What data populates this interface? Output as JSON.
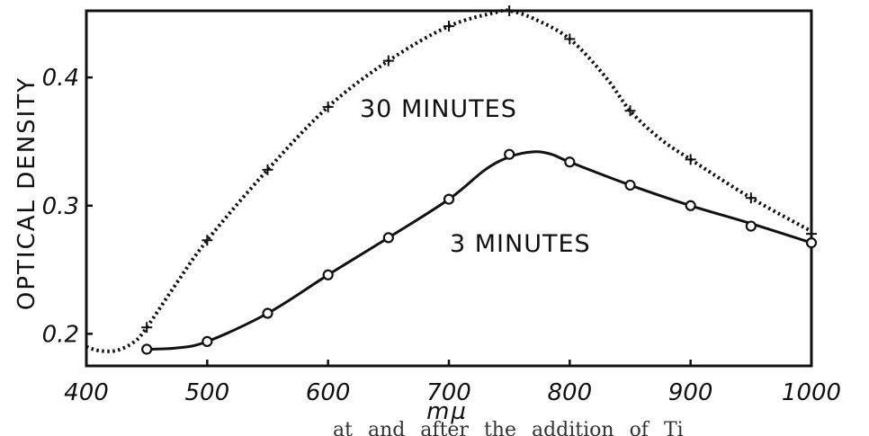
{
  "chart_data": {
    "type": "line",
    "xlabel": "mµ",
    "ylabel": "OPTICAL DENSITY",
    "xlim": [
      400,
      1000
    ],
    "ylim": [
      0.175,
      0.452
    ],
    "x_ticks": [
      "400",
      "500",
      "600",
      "700",
      "800",
      "900",
      "1000"
    ],
    "y_ticks": [
      "0.2",
      "0.3",
      "0.4"
    ],
    "series": [
      {
        "name": "30 MINUTES",
        "line_style": "dotted",
        "marker": "cross",
        "points": [
          [
            450,
            0.205
          ],
          [
            500,
            0.273
          ],
          [
            550,
            0.328
          ],
          [
            600,
            0.377
          ],
          [
            650,
            0.413
          ],
          [
            700,
            0.44
          ],
          [
            750,
            0.452
          ],
          [
            800,
            0.43
          ],
          [
            850,
            0.374
          ],
          [
            900,
            0.336
          ],
          [
            950,
            0.306
          ],
          [
            1000,
            0.278
          ]
        ],
        "curve": [
          [
            400,
            0.19
          ],
          [
            410,
            0.187
          ],
          [
            425,
            0.187
          ],
          [
            440,
            0.194
          ],
          [
            450,
            0.205
          ],
          [
            475,
            0.24
          ],
          [
            500,
            0.273
          ],
          [
            550,
            0.328
          ],
          [
            600,
            0.377
          ],
          [
            650,
            0.413
          ],
          [
            700,
            0.44
          ],
          [
            740,
            0.451
          ],
          [
            750,
            0.452
          ],
          [
            770,
            0.446
          ],
          [
            800,
            0.43
          ],
          [
            830,
            0.4
          ],
          [
            850,
            0.374
          ],
          [
            875,
            0.352
          ],
          [
            900,
            0.336
          ],
          [
            950,
            0.306
          ],
          [
            1000,
            0.28
          ]
        ]
      },
      {
        "name": "3 MINUTES",
        "line_style": "solid",
        "marker": "circle",
        "points": [
          [
            450,
            0.188
          ],
          [
            500,
            0.194
          ],
          [
            550,
            0.216
          ],
          [
            600,
            0.246
          ],
          [
            650,
            0.275
          ],
          [
            700,
            0.305
          ],
          [
            750,
            0.34
          ],
          [
            800,
            0.334
          ],
          [
            850,
            0.316
          ],
          [
            900,
            0.3
          ],
          [
            950,
            0.284
          ],
          [
            1000,
            0.271
          ]
        ],
        "curve": [
          [
            450,
            0.188
          ],
          [
            475,
            0.189
          ],
          [
            500,
            0.194
          ],
          [
            550,
            0.216
          ],
          [
            600,
            0.246
          ],
          [
            650,
            0.275
          ],
          [
            700,
            0.305
          ],
          [
            730,
            0.328
          ],
          [
            750,
            0.338
          ],
          [
            770,
            0.342
          ],
          [
            785,
            0.34
          ],
          [
            800,
            0.334
          ],
          [
            850,
            0.316
          ],
          [
            900,
            0.3
          ],
          [
            950,
            0.286
          ],
          [
            1000,
            0.271
          ]
        ]
      }
    ],
    "annotations": [
      "30 MINUTES",
      "3 MINUTES"
    ],
    "grid": false,
    "legend": "none"
  },
  "caption_fragment": "at and after the addition of Ti"
}
